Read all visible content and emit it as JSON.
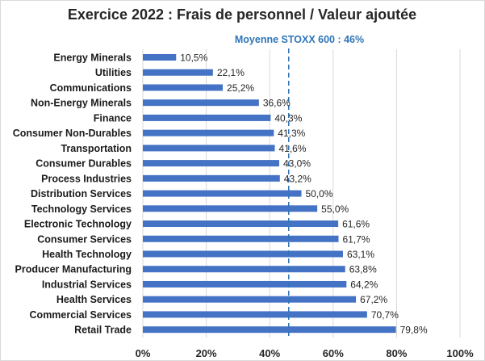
{
  "chart_data": {
    "type": "bar",
    "orientation": "horizontal",
    "title": "Exercice 2022 : Frais de personnel / Valeur ajoutée",
    "categories": [
      "Energy Minerals",
      "Utilities",
      "Communications",
      "Non-Energy Minerals",
      "Finance",
      "Consumer Non-Durables",
      "Transportation",
      "Consumer Durables",
      "Process Industries",
      "Distribution Services",
      "Technology Services",
      "Electronic Technology",
      "Consumer Services",
      "Health Technology",
      "Producer Manufacturing",
      "Industrial Services",
      "Health Services",
      "Commercial Services",
      "Retail Trade"
    ],
    "values": [
      10.5,
      22.1,
      25.2,
      36.6,
      40.3,
      41.3,
      41.6,
      43.0,
      43.2,
      50.0,
      55.0,
      61.6,
      61.7,
      63.1,
      63.8,
      64.2,
      67.2,
      70.7,
      79.8
    ],
    "value_labels": [
      "10,5%",
      "22,1%",
      "25,2%",
      "36,6%",
      "40,3%",
      "41,3%",
      "41,6%",
      "43,0%",
      "43,2%",
      "50,0%",
      "55,0%",
      "61,6%",
      "61,7%",
      "63,1%",
      "63,8%",
      "64,2%",
      "67,2%",
      "70,7%",
      "79,8%"
    ],
    "xlim": [
      0,
      100
    ],
    "x_ticks": [
      0,
      20,
      40,
      60,
      80,
      100
    ],
    "x_tick_labels": [
      "0%",
      "20%",
      "40%",
      "60%",
      "80%",
      "100%"
    ],
    "grid": "vertical",
    "bar_color": "#4472c4",
    "reference_line": {
      "label": "Moyenne STOXX 600 : 46%",
      "value": 46,
      "style": "dashed",
      "color": "#2e75b6"
    }
  }
}
